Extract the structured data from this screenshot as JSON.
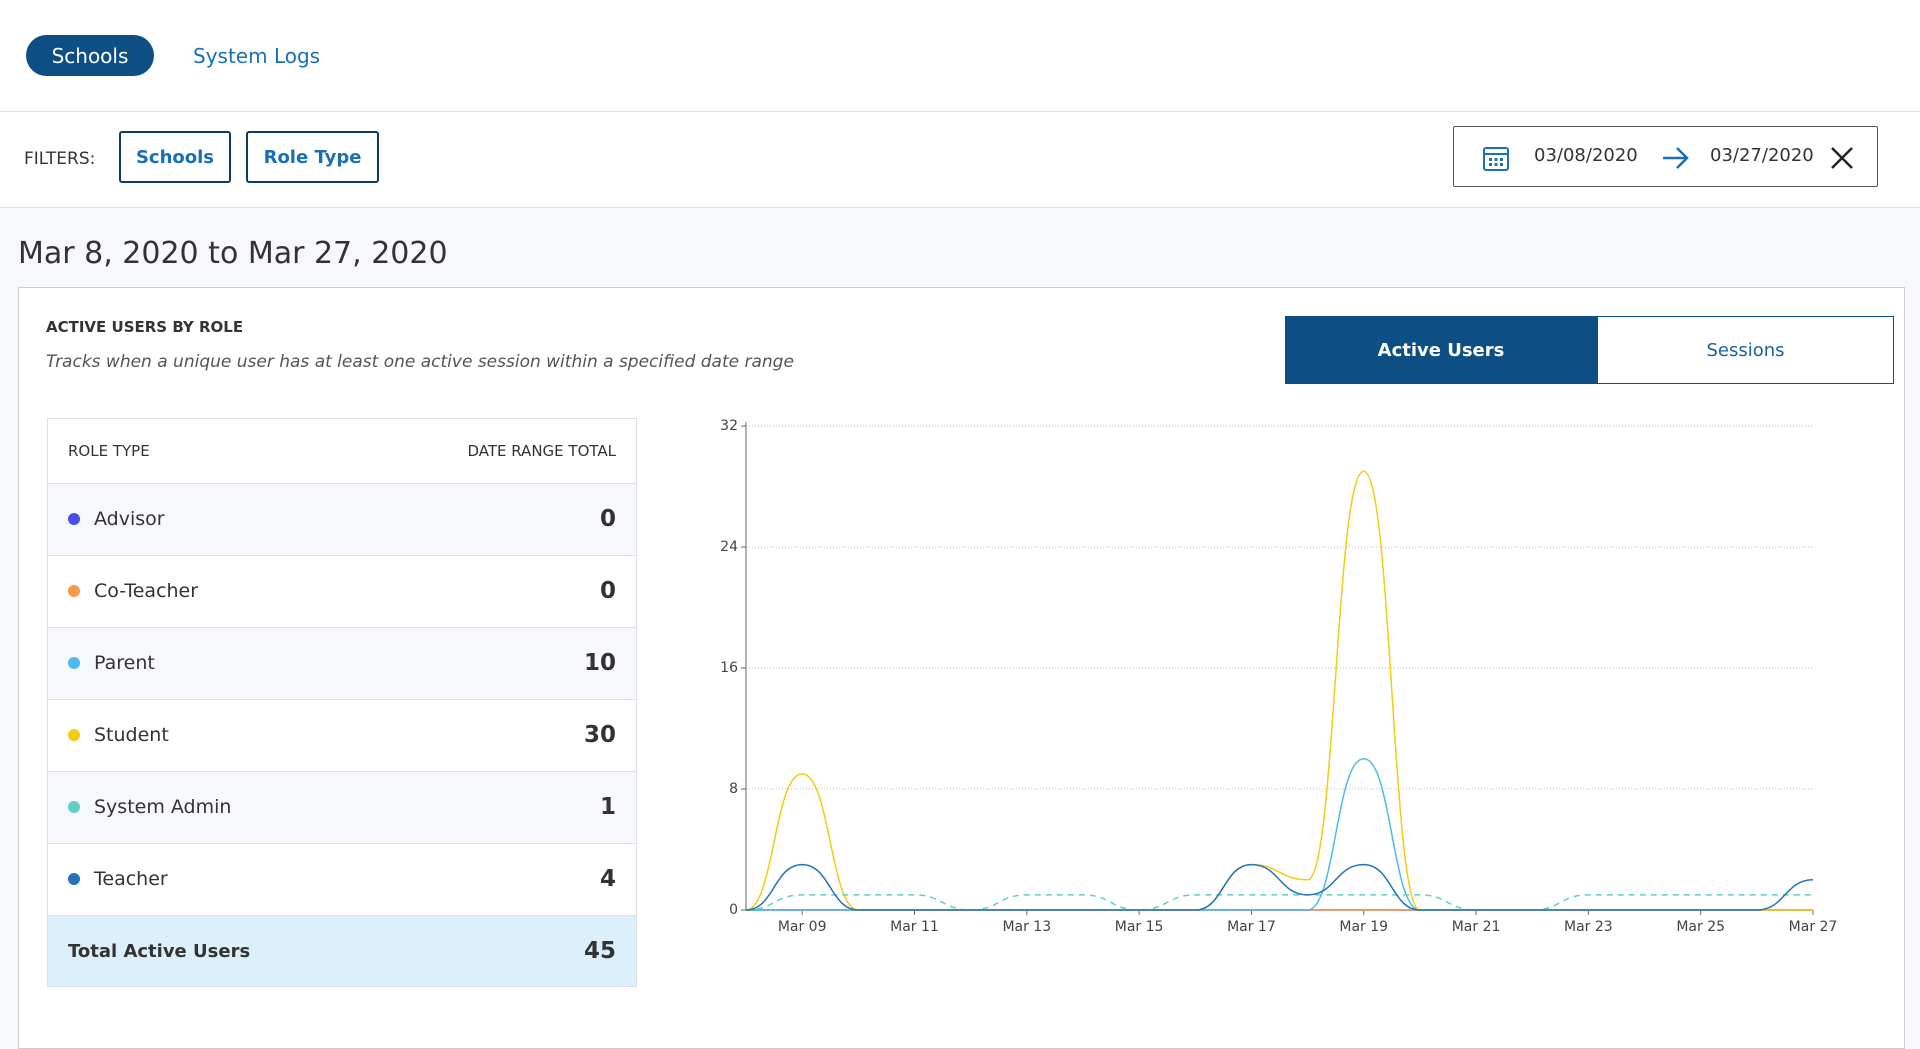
{
  "nav": {
    "tabs": [
      "Schools",
      "System Logs"
    ]
  },
  "filters": {
    "label": "FILTERS:",
    "buttons": [
      "Schools",
      "Role Type"
    ],
    "start_date": "03/08/2020",
    "end_date": "03/27/2020"
  },
  "heading": "Mar 8, 2020 to Mar 27, 2020",
  "panel": {
    "title": "ACTIVE USERS BY ROLE",
    "description": "Tracks when a unique user has at least one active session within a specified date range",
    "toggle": [
      "Active Users",
      "Sessions"
    ]
  },
  "table": {
    "headers": [
      "ROLE TYPE",
      "DATE RANGE TOTAL"
    ],
    "totals": [
      0,
      0,
      10,
      30,
      1,
      4
    ],
    "footer": {
      "label": "Total Active Users",
      "total": 45
    }
  },
  "chart_data": {
    "type": "line",
    "categories": [
      null,
      "Mar 09",
      null,
      "Mar 11",
      null,
      "Mar 13",
      null,
      "Mar 15",
      null,
      "Mar 17",
      null,
      "Mar 19",
      null,
      "Mar 21",
      null,
      "Mar 23",
      null,
      "Mar 25",
      null,
      "Mar 27"
    ],
    "ylim": [
      0,
      32
    ],
    "yticks": [
      0,
      8,
      16,
      24,
      32
    ],
    "grid": true,
    "series": [
      {
        "name": "Advisor",
        "color": "#4b4ee6",
        "values": [
          0,
          0,
          0,
          0,
          0,
          0,
          0,
          0,
          0,
          0,
          0,
          0,
          0,
          0,
          0,
          0,
          0,
          0,
          0,
          0
        ]
      },
      {
        "name": "Co-Teacher",
        "color": "#f59a4b",
        "values": [
          0,
          0,
          0,
          0,
          0,
          0,
          0,
          0,
          0,
          0,
          0,
          0,
          0,
          0,
          0,
          0,
          0,
          0,
          0,
          0
        ]
      },
      {
        "name": "Parent",
        "color": "#4fb8ef",
        "values": [
          0,
          0,
          0,
          0,
          0,
          0,
          0,
          0,
          0,
          0,
          0,
          10,
          0,
          0,
          0,
          0,
          0,
          0,
          0,
          0
        ]
      },
      {
        "name": "Student",
        "color": "#f2cc13",
        "values": [
          0,
          9,
          0,
          0,
          0,
          0,
          0,
          0,
          0,
          3,
          2,
          29,
          0,
          0,
          0,
          0,
          0,
          0,
          0,
          0
        ]
      },
      {
        "name": "System Admin",
        "color": "#5fcfc4",
        "dashed": true,
        "values": [
          0,
          1,
          1,
          1,
          0,
          1,
          1,
          0,
          1,
          1,
          1,
          1,
          1,
          0,
          0,
          1,
          1,
          1,
          1,
          1
        ]
      },
      {
        "name": "Teacher",
        "color": "#2673b8",
        "values": [
          0,
          3,
          0,
          0,
          0,
          0,
          0,
          0,
          0,
          3,
          1,
          3,
          0,
          0,
          0,
          0,
          0,
          0,
          0,
          2
        ]
      }
    ]
  }
}
